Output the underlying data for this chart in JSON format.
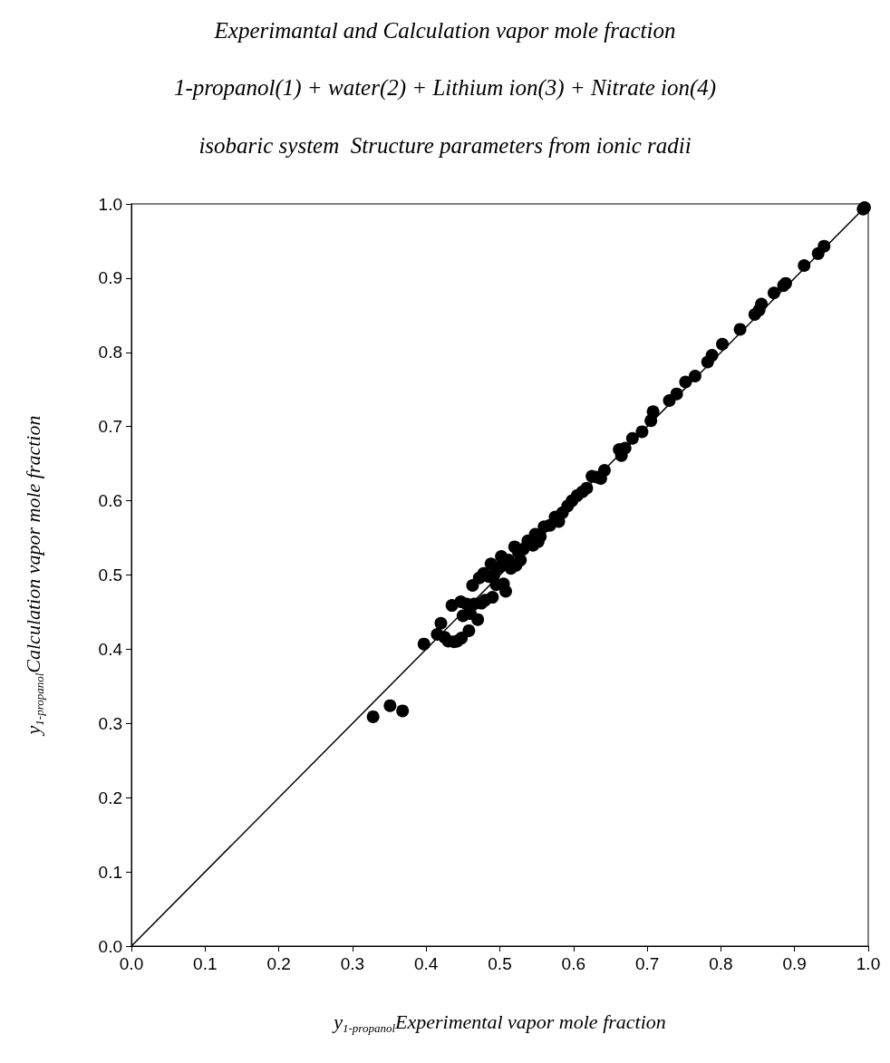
{
  "chart_data": {
    "type": "scatter",
    "title": "Experimantal and Calculation vapor mole fraction",
    "subtitle": "1-propanol(1) + water(2) + Lithium ion(3) + Nitrate ion(4)\nisobaric system  Structure parameters from ionic radii",
    "xlabel": "y$_{1-propanol}$Experimental vapor mole fraction",
    "ylabel": "y$_{1-propanol}$Calculation vapor mole fraction",
    "xlim": [
      0,
      1
    ],
    "ylim": [
      0,
      1
    ],
    "xticks": [
      {
        "value": 0,
        "label": "0.0"
      },
      0.1,
      0.2,
      0.3,
      0.4,
      0.5,
      0.6,
      0.7,
      0.8,
      0.9,
      {
        "value": 1,
        "label": "1.0"
      }
    ],
    "yticks": [
      {
        "value": 0,
        "label": "0.0"
      },
      0.1,
      0.2,
      0.3,
      0.4,
      0.5,
      0.6,
      0.7,
      0.8,
      0.9,
      {
        "value": 1,
        "label": "1.0"
      }
    ],
    "grid": false,
    "marker": "circle",
    "series": [
      {
        "color": "#000000",
        "x": [
          0.328,
          0.351,
          0.368,
          0.397,
          0.415,
          0.42,
          0.425,
          0.43,
          0.435,
          0.438,
          0.442,
          0.447,
          0.448,
          0.45,
          0.455,
          0.458,
          0.46,
          0.463,
          0.465,
          0.47,
          0.472,
          0.475,
          0.478,
          0.48,
          0.485,
          0.488,
          0.49,
          0.492,
          0.495,
          0.5,
          0.502,
          0.505,
          0.508,
          0.512,
          0.515,
          0.52,
          0.522,
          0.525,
          0.528,
          0.532,
          0.538,
          0.545,
          0.548,
          0.552,
          0.555,
          0.56,
          0.568,
          0.575,
          0.58,
          0.585,
          0.592,
          0.598,
          0.605,
          0.612,
          0.618,
          0.625,
          0.632,
          0.637,
          0.642,
          0.662,
          0.665,
          0.67,
          0.68,
          0.693,
          0.705,
          0.708,
          0.73,
          0.74,
          0.752,
          0.765,
          0.782,
          0.788,
          0.802,
          0.826,
          0.846,
          0.852,
          0.855,
          0.872,
          0.885,
          0.888,
          0.913,
          0.932,
          0.94,
          0.993,
          0.995
        ],
        "values": [
          0.309,
          0.324,
          0.317,
          0.407,
          0.42,
          0.435,
          0.416,
          0.411,
          0.459,
          0.41,
          0.411,
          0.464,
          0.415,
          0.445,
          0.461,
          0.425,
          0.448,
          0.486,
          0.461,
          0.44,
          0.496,
          0.462,
          0.502,
          0.466,
          0.498,
          0.515,
          0.47,
          0.5,
          0.487,
          0.511,
          0.525,
          0.488,
          0.478,
          0.52,
          0.509,
          0.538,
          0.513,
          0.531,
          0.52,
          0.535,
          0.546,
          0.54,
          0.555,
          0.545,
          0.552,
          0.565,
          0.567,
          0.578,
          0.572,
          0.584,
          0.593,
          0.6,
          0.607,
          0.612,
          0.617,
          0.633,
          0.632,
          0.63,
          0.641,
          0.669,
          0.661,
          0.671,
          0.684,
          0.693,
          0.708,
          0.72,
          0.735,
          0.744,
          0.76,
          0.768,
          0.787,
          0.796,
          0.811,
          0.831,
          0.851,
          0.857,
          0.865,
          0.88,
          0.89,
          0.893,
          0.917,
          0.933,
          0.943,
          0.993,
          0.995
        ]
      },
      {
        "type": "line",
        "color": "#000000",
        "marker": "none",
        "line_style": "solid",
        "x": [
          0,
          1
        ],
        "values": [
          0,
          1
        ]
      }
    ]
  }
}
